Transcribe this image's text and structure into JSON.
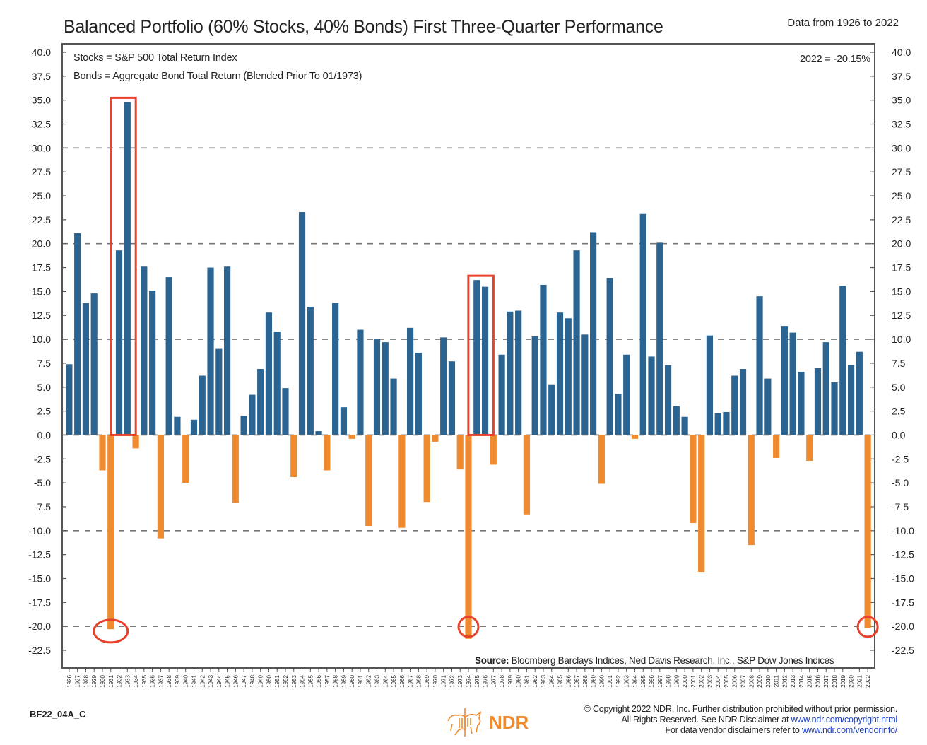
{
  "header": {
    "title": "Balanced Portfolio (60% Stocks, 40% Bonds) First Three-Quarter Performance",
    "date_range": "Data from 1926 to 2022"
  },
  "annotations": {
    "stocks_def": "Stocks = S&P 500 Total Return Index",
    "bonds_def": "Bonds = Aggregate Bond Total Return (Blended Prior To 01/1973)",
    "latest_value": "2022 = -20.15%"
  },
  "source": {
    "label": "Source:",
    "text": "Bloomberg Barclays Indices, Ned Davis Research, Inc., S&P Dow Jones Indices"
  },
  "footer": {
    "chart_code": "BF22_04A_C",
    "logo_text": "NDR",
    "copyright_line1": "© Copyright 2022 NDR, Inc. Further distribution prohibited without prior permission.",
    "copyright_line2_prefix": "All Rights Reserved. See NDR Disclaimer at ",
    "copyright_line2_link": "www.ndr.com/copyright.html",
    "copyright_line3_prefix": "For data vendor disclaimers refer to ",
    "copyright_line3_link": "www.ndr.com/vendorinfo/"
  },
  "colors": {
    "positive": "#2b6491",
    "negative": "#f08a2e",
    "highlight": "#e8412c",
    "grid": "#777777"
  },
  "chart_data": {
    "type": "bar",
    "title": "Balanced Portfolio (60% Stocks, 40% Bonds) First Three-Quarter Performance",
    "xlabel": "",
    "ylabel": "",
    "ylim": [
      -22.5,
      40.0
    ],
    "yticks": [
      40.0,
      37.5,
      35.0,
      32.5,
      30.0,
      27.5,
      25.0,
      22.5,
      20.0,
      17.5,
      15.0,
      12.5,
      10.0,
      7.5,
      5.0,
      2.5,
      0.0,
      -2.5,
      -5.0,
      -7.5,
      -10.0,
      -12.5,
      -15.0,
      -17.5,
      -20.0,
      -22.5
    ],
    "dashed_gridlines": [
      30.0,
      20.0,
      10.0,
      0.0,
      -10.0,
      -20.0
    ],
    "grid": true,
    "categories": [
      1926,
      1927,
      1928,
      1929,
      1930,
      1931,
      1932,
      1933,
      1934,
      1935,
      1936,
      1937,
      1938,
      1939,
      1940,
      1941,
      1942,
      1943,
      1944,
      1945,
      1946,
      1947,
      1948,
      1949,
      1950,
      1951,
      1952,
      1953,
      1954,
      1955,
      1956,
      1957,
      1958,
      1959,
      1960,
      1961,
      1962,
      1963,
      1964,
      1965,
      1966,
      1967,
      1968,
      1969,
      1970,
      1971,
      1972,
      1973,
      1974,
      1975,
      1976,
      1977,
      1978,
      1979,
      1980,
      1981,
      1982,
      1983,
      1984,
      1985,
      1986,
      1987,
      1988,
      1989,
      1990,
      1991,
      1992,
      1993,
      1994,
      1995,
      1996,
      1997,
      1998,
      1999,
      2000,
      2001,
      2002,
      2003,
      2004,
      2005,
      2006,
      2007,
      2008,
      2009,
      2010,
      2011,
      2012,
      2013,
      2014,
      2015,
      2016,
      2017,
      2018,
      2019,
      2020,
      2021,
      2022
    ],
    "values": [
      7.4,
      21.1,
      13.8,
      14.8,
      -3.7,
      -20.3,
      19.3,
      34.8,
      -1.4,
      17.6,
      15.1,
      -10.8,
      16.5,
      1.9,
      -5.0,
      1.6,
      6.2,
      17.5,
      9.0,
      17.6,
      -7.1,
      2.0,
      4.2,
      6.9,
      12.8,
      10.8,
      4.9,
      -4.4,
      23.3,
      13.4,
      0.4,
      -3.7,
      13.8,
      2.9,
      -0.4,
      11.0,
      -9.5,
      10.0,
      9.7,
      5.9,
      -9.7,
      11.2,
      8.6,
      -7.0,
      -0.7,
      10.2,
      7.7,
      -3.6,
      -21.3,
      16.2,
      15.5,
      -3.1,
      8.4,
      12.9,
      13.0,
      -8.3,
      10.3,
      15.7,
      5.3,
      12.8,
      12.2,
      19.3,
      10.5,
      21.2,
      -5.1,
      16.4,
      4.3,
      8.4,
      -0.4,
      23.1,
      8.2,
      20.1,
      7.3,
      3.0,
      1.9,
      -9.2,
      -14.3,
      10.4,
      2.3,
      2.4,
      6.2,
      6.9,
      -11.5,
      14.5,
      5.9,
      -2.4,
      11.4,
      10.7,
      6.6,
      -2.7,
      7.0,
      9.7,
      5.5,
      15.6,
      7.3,
      8.7,
      -20.15
    ],
    "highlight_boxes": [
      [
        1932,
        1933
      ],
      [
        1975,
        1976
      ]
    ],
    "highlight_circles": [
      1931,
      1974,
      2022
    ],
    "legend": "none"
  }
}
